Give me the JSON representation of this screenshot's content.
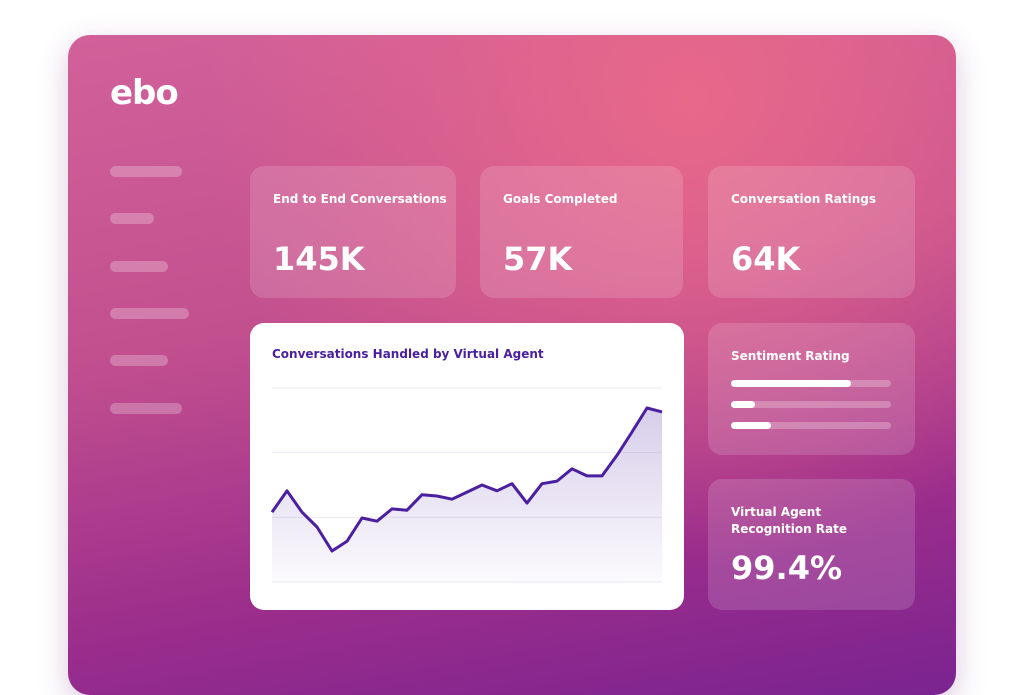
{
  "logo": "ebo",
  "cards": [
    {
      "title": "End to End Conversations",
      "value": "145K"
    },
    {
      "title": "Goals Completed",
      "value": "57K"
    },
    {
      "title": "Conversation Ratings",
      "value": "64K"
    }
  ],
  "sentiment": {
    "title": "Sentiment Rating",
    "xlim": [
      0,
      100
    ],
    "values": [
      75,
      15,
      25
    ]
  },
  "recognition": {
    "title": "Virtual Agent Recognition Rate",
    "value": "99.4%"
  },
  "chart_data": {
    "type": "line",
    "title": "Conversations Handled by Virtual Agent",
    "values": [
      1.08,
      1.41,
      1.08,
      0.85,
      0.48,
      0.63,
      0.99,
      0.94,
      1.13,
      1.11,
      1.35,
      1.33,
      1.28,
      1.39,
      1.5,
      1.41,
      1.52,
      1.22,
      1.52,
      1.56,
      1.75,
      1.64,
      1.64,
      1.96,
      2.32,
      2.69,
      2.63
    ],
    "color": "#4a1fa0",
    "ylim": [
      0,
      3
    ],
    "yticks": [
      0,
      1,
      2,
      3
    ],
    "grid": true
  }
}
